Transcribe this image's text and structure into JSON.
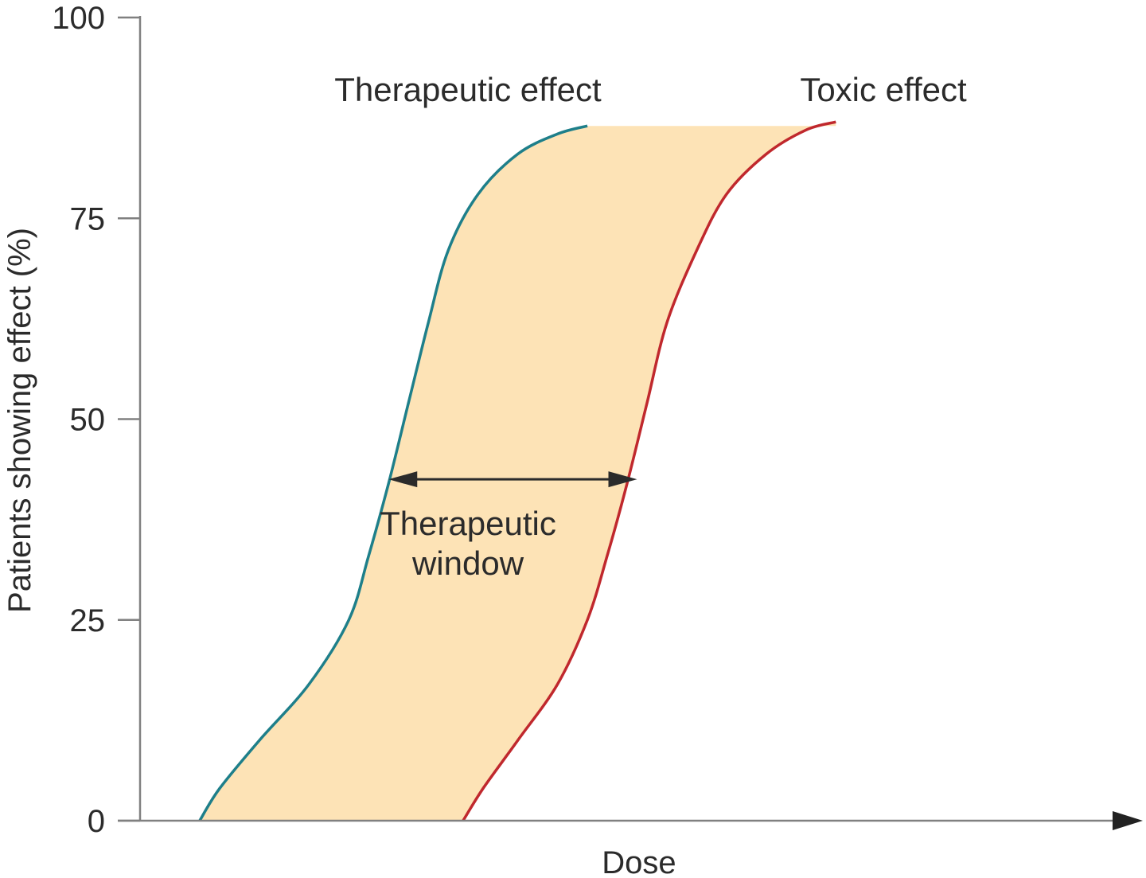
{
  "chart_data": {
    "type": "line",
    "title": "",
    "xlabel": "Dose",
    "ylabel": "Patients showing effect (%)",
    "ylim": [
      0,
      100
    ],
    "yticks": [
      0,
      25,
      50,
      75,
      100
    ],
    "x_tick_labels_shown": false,
    "grid": false,
    "shaded_region": {
      "between": [
        "Therapeutic effect",
        "Toxic effect"
      ],
      "color": "#fde3b6"
    },
    "series": [
      {
        "name": "Therapeutic effect",
        "color": "#1e7f8a",
        "points": [
          [
            0.06,
            0
          ],
          [
            0.08,
            4
          ],
          [
            0.12,
            10
          ],
          [
            0.17,
            17
          ],
          [
            0.21,
            25
          ],
          [
            0.23,
            33
          ],
          [
            0.25,
            42
          ],
          [
            0.27,
            52
          ],
          [
            0.29,
            62
          ],
          [
            0.31,
            71
          ],
          [
            0.34,
            78
          ],
          [
            0.38,
            83
          ],
          [
            0.42,
            85.5
          ],
          [
            0.45,
            86.5
          ]
        ]
      },
      {
        "name": "Toxic effect",
        "color": "#c0282d",
        "points": [
          [
            0.325,
            0
          ],
          [
            0.345,
            4
          ],
          [
            0.38,
            10
          ],
          [
            0.42,
            17
          ],
          [
            0.45,
            25
          ],
          [
            0.47,
            33
          ],
          [
            0.49,
            42
          ],
          [
            0.51,
            52
          ],
          [
            0.53,
            62
          ],
          [
            0.56,
            71
          ],
          [
            0.59,
            78
          ],
          [
            0.63,
            83
          ],
          [
            0.67,
            86
          ],
          [
            0.7,
            87
          ]
        ]
      }
    ],
    "annotation": {
      "line1": "Therapeutic",
      "line2": "window",
      "arrow_y": 42.5,
      "arrow_x_from": 0.25,
      "arrow_x_to": 0.5
    },
    "colors": {
      "axis": "#808080",
      "arrow": "#2b2b2b"
    }
  }
}
